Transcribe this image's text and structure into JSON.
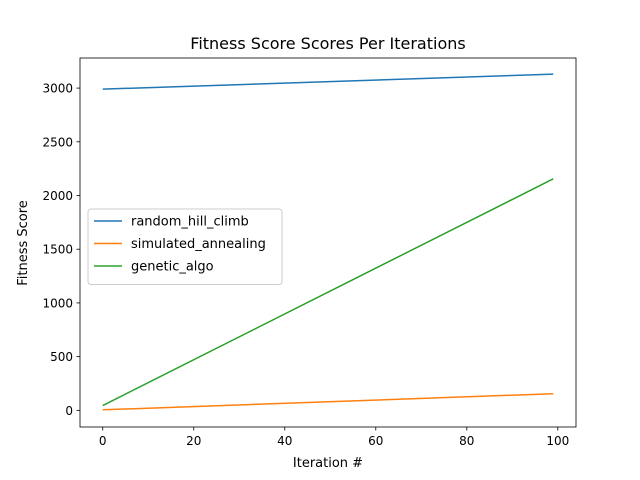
{
  "chart_data": {
    "type": "line",
    "title": "Fitness Score Scores Per Iterations",
    "xlabel": "Iteration #",
    "ylabel": "Fitness Score",
    "xlim": [
      -5,
      104
    ],
    "ylim": [
      -155,
      3280
    ],
    "xticks": [
      0,
      20,
      40,
      60,
      80,
      100
    ],
    "yticks": [
      0,
      500,
      1000,
      1500,
      2000,
      2500,
      3000
    ],
    "grid": false,
    "legend_position": "center-left",
    "series": [
      {
        "name": "random_hill_climb",
        "color": "#1f77b4",
        "x": [
          0,
          99
        ],
        "y": [
          2990,
          3130
        ]
      },
      {
        "name": "simulated_annealing",
        "color": "#ff7f0e",
        "x": [
          0,
          99
        ],
        "y": [
          5,
          155
        ]
      },
      {
        "name": "genetic_algo",
        "color": "#2ca02c",
        "x": [
          0,
          99
        ],
        "y": [
          45,
          2155
        ]
      }
    ]
  }
}
